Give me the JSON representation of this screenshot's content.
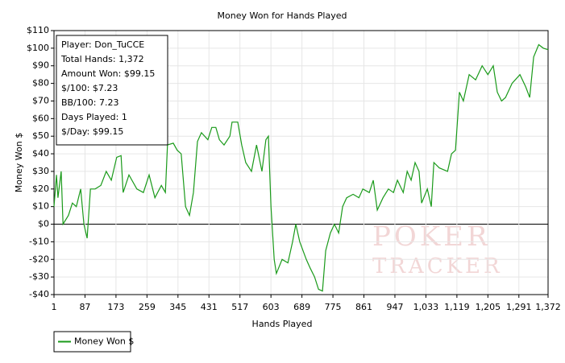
{
  "chart_data": {
    "type": "line",
    "title": "Money Won for Hands Played",
    "xlabel": "Hands Played",
    "ylabel": "Money Won $",
    "xlim": [
      1,
      1372
    ],
    "ylim": [
      -40,
      110
    ],
    "xticks": [
      1,
      87,
      173,
      259,
      345,
      431,
      517,
      603,
      689,
      775,
      861,
      947,
      {
        "value": 1033,
        "label": "1,033"
      },
      {
        "value": 1119,
        "label": "1,119"
      },
      {
        "value": 1205,
        "label": "1,205"
      },
      {
        "value": 1291,
        "label": "1,291"
      },
      {
        "value": 1372,
        "label": "1,372"
      }
    ],
    "yticks": [
      {
        "value": -40,
        "label": "-$40"
      },
      {
        "value": -30,
        "label": "-$30"
      },
      {
        "value": -20,
        "label": "-$20"
      },
      {
        "value": -10,
        "label": "-$10"
      },
      {
        "value": 0,
        "label": "$0"
      },
      {
        "value": 10,
        "label": "$10"
      },
      {
        "value": 20,
        "label": "$20"
      },
      {
        "value": 30,
        "label": "$30"
      },
      {
        "value": 40,
        "label": "$40"
      },
      {
        "value": 50,
        "label": "$50"
      },
      {
        "value": 60,
        "label": "$60"
      },
      {
        "value": 70,
        "label": "$70"
      },
      {
        "value": 80,
        "label": "$80"
      },
      {
        "value": 90,
        "label": "$90"
      },
      {
        "value": 100,
        "label": "$100"
      },
      {
        "value": 110,
        "label": "$110"
      }
    ],
    "grid": true,
    "x": [
      1,
      8,
      12,
      21,
      26,
      41,
      52,
      63,
      75,
      84,
      93,
      102,
      115,
      131,
      146,
      160,
      175,
      187,
      193,
      209,
      231,
      249,
      265,
      281,
      299,
      310,
      316,
      332,
      343,
      354,
      366,
      377,
      388,
      399,
      410,
      428,
      439,
      450,
      460,
      473,
      489,
      495,
      511,
      522,
      533,
      549,
      563,
      578,
      589,
      596,
      603,
      612,
      618,
      634,
      650,
      663,
      672,
      683,
      701,
      712,
      724,
      735,
      746,
      755,
      768,
      779,
      791,
      802,
      813,
      831,
      847,
      858,
      876,
      887,
      898,
      914,
      929,
      943,
      954,
      970,
      981,
      992,
      1003,
      1014,
      1021,
      1037,
      1048,
      1055,
      1070,
      1093,
      1104,
      1115,
      1126,
      1137,
      1153,
      1171,
      1189,
      1205,
      1220,
      1231,
      1243,
      1254,
      1272,
      1294,
      1310,
      1321,
      1332,
      1346,
      1359,
      1372
    ],
    "series": [
      {
        "name": "Money Won $",
        "color": "#1a9a1a",
        "values": [
          10,
          28,
          15,
          30,
          0,
          5,
          12,
          10,
          20,
          0,
          -8,
          20,
          20,
          22,
          30,
          25,
          38,
          39,
          18,
          28,
          20,
          18,
          28,
          15,
          22,
          18,
          45,
          46,
          42,
          40,
          10,
          5,
          18,
          47,
          52,
          48,
          55,
          55,
          48,
          45,
          50,
          58,
          58,
          45,
          35,
          30,
          45,
          30,
          48,
          50,
          10,
          -20,
          -28,
          -20,
          -22,
          -10,
          0,
          -10,
          -20,
          -25,
          -30,
          -37,
          -38,
          -15,
          -5,
          0,
          -5,
          10,
          15,
          17,
          15,
          20,
          18,
          25,
          8,
          15,
          20,
          18,
          25,
          18,
          30,
          25,
          35,
          30,
          12,
          20,
          10,
          35,
          32,
          30,
          40,
          42,
          75,
          70,
          85,
          82,
          90,
          85,
          90,
          75,
          70,
          72,
          80,
          85,
          78,
          72,
          95,
          102,
          100,
          99.15
        ]
      }
    ],
    "info_box": [
      "Player: Don_TuCCE",
      "Total Hands: 1,372",
      "Amount Won: $99.15",
      "$/100: $7.23",
      "BB/100: 7.23",
      "Days Played: 1",
      "$/Day: $99.15"
    ],
    "watermark": [
      "POKER",
      "TRACKER"
    ]
  }
}
